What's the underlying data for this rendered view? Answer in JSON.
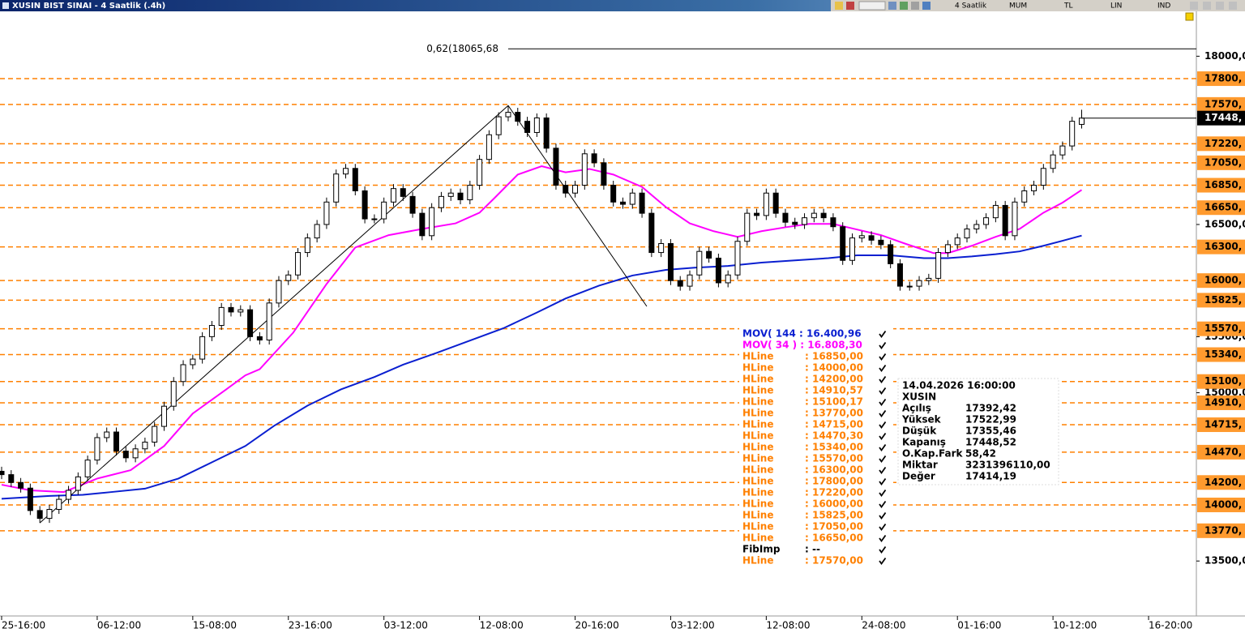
{
  "title_bar": {
    "title": "XUSIN BIST SINAI - 4 Saatlik (.4h)",
    "buttons": [
      "4 Saatlik",
      "MUM",
      "TL",
      "LIN",
      "IND"
    ]
  },
  "chart_data": {
    "type": "candlestick",
    "xlim": [
      0,
      250
    ],
    "ylim": [
      13010,
      18400
    ],
    "xticks": [
      {
        "value": 0,
        "label": "25-16:00"
      },
      {
        "value": 20,
        "label": "06-12:00"
      },
      {
        "value": 40,
        "label": "15-08:00"
      },
      {
        "value": 60,
        "label": "23-16:00"
      },
      {
        "value": 80,
        "label": "03-12:00"
      },
      {
        "value": 100,
        "label": "12-08:00"
      },
      {
        "value": 120,
        "label": "20-16:00"
      },
      {
        "value": 140,
        "label": "03-12:00"
      },
      {
        "value": 160,
        "label": "12-08:00"
      },
      {
        "value": 180,
        "label": "24-08:00"
      },
      {
        "value": 200,
        "label": "01-16:00"
      },
      {
        "value": 220,
        "label": "10-12:00"
      },
      {
        "value": 240,
        "label": "16-20:00"
      }
    ],
    "yticks": [
      {
        "value": 18000,
        "label": "18000,0"
      },
      {
        "value": 16500,
        "label": "16500,0"
      },
      {
        "value": 15500,
        "label": "15500,0"
      },
      {
        "value": 15000,
        "label": "15000,0"
      },
      {
        "value": 13500,
        "label": "13500,0"
      }
    ],
    "x": [
      0,
      2,
      4,
      6,
      8,
      10,
      12,
      14,
      16,
      18,
      20,
      22,
      24,
      26,
      28,
      30,
      32,
      34,
      36,
      38,
      40,
      42,
      44,
      46,
      48,
      50,
      52,
      54,
      56,
      58,
      60,
      62,
      64,
      66,
      68,
      70,
      72,
      74,
      76,
      78,
      80,
      82,
      84,
      86,
      88,
      90,
      92,
      94,
      96,
      98,
      100,
      102,
      104,
      106,
      108,
      110,
      112,
      114,
      116,
      118,
      120,
      122,
      124,
      126,
      128,
      130,
      132,
      134,
      136,
      138,
      140,
      142,
      144,
      146,
      148,
      150,
      152,
      154,
      156,
      158,
      160,
      162,
      164,
      166,
      168,
      170,
      172,
      174,
      176,
      178,
      180,
      182,
      184,
      186,
      188,
      190,
      192,
      194,
      196,
      198,
      200,
      202,
      204,
      206,
      208,
      210,
      212,
      214,
      216,
      218,
      220,
      222,
      224,
      226
    ],
    "open": [
      14300,
      14270,
      14200,
      14150,
      13950,
      13880,
      13960,
      14050,
      14130,
      14250,
      14400,
      14600,
      14650,
      14480,
      14420,
      14500,
      14560,
      14700,
      14880,
      15100,
      15250,
      15300,
      15500,
      15600,
      15760,
      15720,
      15740,
      15500,
      15470,
      15800,
      16000,
      16050,
      16250,
      16380,
      16500,
      16700,
      16950,
      17000,
      16800,
      16550,
      16550,
      16700,
      16820,
      16750,
      16600,
      16400,
      16650,
      16750,
      16780,
      16720,
      16850,
      17080,
      17300,
      17460,
      17500,
      17420,
      17320,
      17450,
      17180,
      16850,
      16780,
      16850,
      17130,
      17050,
      16850,
      16700,
      16680,
      16780,
      16600,
      16250,
      16330,
      16000,
      15950,
      16050,
      16260,
      16200,
      15980,
      16050,
      16350,
      16600,
      16580,
      16780,
      16600,
      16520,
      16500,
      16560,
      16600,
      16560,
      16480,
      16180,
      16380,
      16400,
      16360,
      16320,
      16150,
      15950,
      15950,
      16000,
      16020,
      16250,
      16320,
      16380,
      16460,
      16500,
      16560,
      16670,
      16400,
      16700,
      16800,
      16850,
      17000,
      17120,
      17200,
      17392.42
    ],
    "high": [
      14340,
      14310,
      14240,
      14190,
      13990,
      14000,
      14090,
      14170,
      14290,
      14440,
      14640,
      14690,
      14690,
      14520,
      14540,
      14600,
      14740,
      14920,
      15140,
      15290,
      15340,
      15540,
      15640,
      15800,
      15800,
      15780,
      15780,
      15540,
      15840,
      16040,
      16090,
      16290,
      16420,
      16540,
      16740,
      16990,
      17040,
      17040,
      16840,
      16590,
      16740,
      16860,
      16860,
      16790,
      16640,
      16690,
      16790,
      16820,
      16820,
      16890,
      17120,
      17340,
      17500,
      17560,
      17540,
      17460,
      17490,
      17490,
      17220,
      16890,
      16890,
      17170,
      17170,
      17090,
      16890,
      16740,
      16820,
      16820,
      16640,
      16370,
      16370,
      16040,
      16090,
      16300,
      16300,
      16240,
      16090,
      16390,
      16640,
      16640,
      16820,
      16820,
      16640,
      16560,
      16600,
      16640,
      16640,
      16600,
      16520,
      16420,
      16440,
      16440,
      16400,
      16360,
      16190,
      15990,
      16040,
      16060,
      16290,
      16360,
      16420,
      16500,
      16540,
      16600,
      16710,
      16710,
      16740,
      16840,
      16890,
      17040,
      17160,
      17240,
      17460,
      17522.99
    ],
    "low": [
      14230,
      14160,
      14110,
      13910,
      13840,
      13840,
      13920,
      14010,
      14090,
      14210,
      14360,
      14560,
      14440,
      14380,
      14380,
      14460,
      14520,
      14660,
      14840,
      15060,
      15210,
      15260,
      15460,
      15560,
      15680,
      15680,
      15460,
      15430,
      15430,
      15760,
      15960,
      16010,
      16210,
      16340,
      16460,
      16660,
      16910,
      16760,
      16510,
      16510,
      16510,
      16660,
      16710,
      16560,
      16360,
      16360,
      16610,
      16710,
      16680,
      16680,
      16810,
      17040,
      17260,
      17420,
      17380,
      17280,
      17280,
      17140,
      16810,
      16740,
      16740,
      16810,
      17010,
      16810,
      16660,
      16640,
      16640,
      16560,
      16210,
      16210,
      15960,
      15910,
      15910,
      16010,
      16160,
      15940,
      15940,
      16010,
      16310,
      16540,
      16540,
      16560,
      16480,
      16460,
      16460,
      16520,
      16520,
      16440,
      16140,
      16140,
      16340,
      16320,
      16280,
      16110,
      15910,
      15910,
      15910,
      15960,
      15980,
      16210,
      16280,
      16340,
      16420,
      16460,
      16520,
      16360,
      16360,
      16660,
      16760,
      16810,
      16960,
      17080,
      17160,
      17355.46
    ],
    "close": [
      14270,
      14200,
      14150,
      13950,
      13880,
      13960,
      14050,
      14130,
      14250,
      14400,
      14600,
      14650,
      14480,
      14420,
      14500,
      14560,
      14700,
      14880,
      15100,
      15250,
      15300,
      15500,
      15600,
      15760,
      15720,
      15740,
      15500,
      15470,
      15800,
      16000,
      16050,
      16250,
      16380,
      16500,
      16700,
      16950,
      17000,
      16800,
      16550,
      16550,
      16700,
      16820,
      16750,
      16600,
      16400,
      16650,
      16750,
      16780,
      16720,
      16850,
      17080,
      17300,
      17460,
      17500,
      17420,
      17320,
      17450,
      17180,
      16850,
      16780,
      16850,
      17130,
      17050,
      16850,
      16700,
      16680,
      16780,
      16600,
      16250,
      16330,
      16000,
      15950,
      16050,
      16260,
      16200,
      15980,
      16050,
      16350,
      16600,
      16580,
      16780,
      16600,
      16520,
      16500,
      16560,
      16600,
      16560,
      16480,
      16180,
      16380,
      16400,
      16360,
      16320,
      16150,
      15950,
      15950,
      16000,
      16020,
      16250,
      16320,
      16380,
      16460,
      16500,
      16560,
      16670,
      16400,
      16700,
      16800,
      16850,
      17000,
      17120,
      17200,
      17420,
      17448.52
    ],
    "series": [
      {
        "name": "MOV( 144 : 16.400,96",
        "color": "#0a1fd0",
        "x": [
          0,
          10,
          17,
          23,
          30,
          37,
          44,
          51,
          57,
          64,
          71,
          78,
          84,
          91,
          98,
          105,
          112,
          118,
          125,
          132,
          139,
          145,
          152,
          159,
          166,
          173,
          179,
          186,
          193,
          198,
          203,
          208,
          213,
          218,
          222,
          226
        ],
        "values": [
          14055,
          14080,
          14090,
          14115,
          14145,
          14235,
          14380,
          14525,
          14705,
          14885,
          15030,
          15140,
          15250,
          15355,
          15465,
          15575,
          15715,
          15840,
          15955,
          16045,
          16095,
          16115,
          16130,
          16160,
          16180,
          16200,
          16225,
          16225,
          16200,
          16200,
          16215,
          16235,
          16260,
          16310,
          16355,
          16400.96
        ]
      },
      {
        "name": "MOV( 34 ) : 16.808,30",
        "color": "#ff00ff",
        "x": [
          0,
          6,
          13,
          20,
          27,
          34,
          40,
          47,
          51,
          54,
          61,
          68,
          74,
          81,
          88,
          95,
          100,
          103,
          108,
          113,
          118,
          123,
          128,
          134,
          139,
          144,
          149,
          154,
          159,
          164,
          169,
          174,
          179,
          184,
          189,
          195,
          198,
          203,
          208,
          213,
          218,
          222,
          226
        ],
        "values": [
          14180,
          14130,
          14115,
          14235,
          14310,
          14525,
          14815,
          15030,
          15155,
          15210,
          15535,
          15970,
          16295,
          16405,
          16460,
          16510,
          16605,
          16730,
          16945,
          17020,
          16965,
          16995,
          16945,
          16835,
          16655,
          16510,
          16440,
          16390,
          16440,
          16475,
          16505,
          16505,
          16455,
          16405,
          16330,
          16245,
          16245,
          16310,
          16390,
          16460,
          16605,
          16695,
          16808.3
        ]
      }
    ],
    "hline_color": "#ff8000",
    "hlines": [
      {
        "name": "HLine",
        "value": 16850,
        "value_label": ": 16850,00",
        "axis_label": "16850,"
      },
      {
        "name": "HLine",
        "value": 14000,
        "value_label": ": 14000,00",
        "axis_label": "14000,"
      },
      {
        "name": "HLine",
        "value": 14200,
        "value_label": ": 14200,00",
        "axis_label": "14200,"
      },
      {
        "name": "HLine",
        "value": 14910.57,
        "value_label": ": 14910,57",
        "axis_label": "14910,"
      },
      {
        "name": "HLine",
        "value": 15100.17,
        "value_label": ": 15100,17",
        "axis_label": "15100,"
      },
      {
        "name": "HLine",
        "value": 13770,
        "value_label": ": 13770,00",
        "axis_label": "13770,"
      },
      {
        "name": "HLine",
        "value": 14715,
        "value_label": ": 14715,00",
        "axis_label": "14715,"
      },
      {
        "name": "HLine",
        "value": 14470.3,
        "value_label": ": 14470,30",
        "axis_label": "14470,"
      },
      {
        "name": "HLine",
        "value": 15340,
        "value_label": ": 15340,00",
        "axis_label": "15340,"
      },
      {
        "name": "HLine",
        "value": 15570,
        "value_label": ": 15570,00",
        "axis_label": "15570,"
      },
      {
        "name": "HLine",
        "value": 16300,
        "value_label": ": 16300,00",
        "axis_label": "16300,"
      },
      {
        "name": "HLine",
        "value": 17800,
        "value_label": ": 17800,00",
        "axis_label": "17800,"
      },
      {
        "name": "HLine",
        "value": 17220,
        "value_label": ": 17220,00",
        "axis_label": "17220,"
      },
      {
        "name": "HLine",
        "value": 16000,
        "value_label": ": 16000,00",
        "axis_label": "16000,"
      },
      {
        "name": "HLine",
        "value": 15825,
        "value_label": ": 15825,00",
        "axis_label": "15825,"
      },
      {
        "name": "HLine",
        "value": 17050,
        "value_label": ": 17050,00",
        "axis_label": "17050,"
      },
      {
        "name": "HLine",
        "value": 16650,
        "value_label": ": 16650,00",
        "axis_label": "16650,"
      },
      {
        "name": "FibImp",
        "value_label": ": --",
        "color": "#000000"
      },
      {
        "name": "HLine",
        "value": 17570,
        "value_label": ": 17570,00",
        "axis_label": "17570,"
      }
    ],
    "fib": {
      "x": [
        8,
        106,
        135
      ],
      "values": [
        13840,
        17560,
        15770
      ],
      "level": {
        "value": 18065.68,
        "label": "0,62(18065,68"
      }
    },
    "last": {
      "value": 17448.52,
      "label": "17448,"
    },
    "info": {
      "header": "14.04.2026  16:00:00",
      "symbol": "XUSIN",
      "rows": [
        {
          "label": "Açılış",
          "value": "17392,42"
        },
        {
          "label": "Yüksek",
          "value": "17522,99"
        },
        {
          "label": "Düşük",
          "value": "17355,46"
        },
        {
          "label": "Kapanış",
          "value": "17448,52"
        },
        {
          "label": "O.Kap.Fark",
          "value": "58,42"
        },
        {
          "label": "Miktar",
          "value": "3231396110,00"
        },
        {
          "label": "Değer",
          "value": "17414,19"
        }
      ]
    }
  }
}
